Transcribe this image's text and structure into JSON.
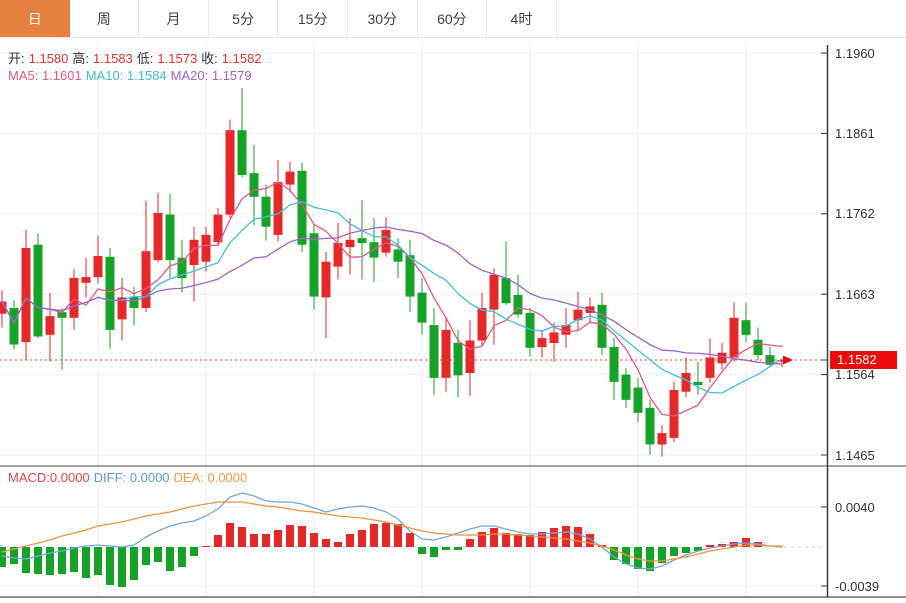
{
  "tabs": [
    {
      "label": "日",
      "selected": true
    },
    {
      "label": "周",
      "selected": false
    },
    {
      "label": "月",
      "selected": false
    },
    {
      "label": "5分",
      "selected": false
    },
    {
      "label": "15分",
      "selected": false
    },
    {
      "label": "30分",
      "selected": false
    },
    {
      "label": "60分",
      "selected": false
    },
    {
      "label": "4时",
      "selected": false
    }
  ],
  "legend": {
    "ohlc": {
      "open_label": "开:",
      "open": "1.1580",
      "high_label": "高:",
      "high": "1.1583",
      "low_label": "低:",
      "low": "1.1573",
      "close_label": "收:",
      "close": "1.1582"
    },
    "ma": {
      "ma5": "MA5: 1.1601",
      "ma10": "MA10: 1.1584",
      "ma20": "MA20: 1.1579"
    },
    "macd": {
      "macd": "MACD:0.0000",
      "diff": "DIFF: 0.0000",
      "dea": "DEA: 0.0000"
    }
  },
  "y_axis": {
    "current_price": "1.1582"
  },
  "colors": {
    "up": "#e52828",
    "down": "#14a327",
    "ma5": "#e7568c",
    "ma10": "#41c0d5",
    "ma20": "#a165c4",
    "diff": "#6fa8dc",
    "dea": "#f0923f",
    "tab_accent": "#e8813e",
    "price_tag": "#ee0a0a",
    "price_line": "#e8402a",
    "grid": "#f0f0f0",
    "axis": "#3a3a3a",
    "macd_zero": "#b9e0ea"
  },
  "chart_data": {
    "type": "candlestick+macd",
    "title": "",
    "legend_position": "top-left",
    "grid": true,
    "price_axis": {
      "min": 1.1465,
      "max": 1.196,
      "ticks": [
        1.196,
        1.1861,
        1.1762,
        1.1663,
        1.1564,
        1.1465
      ]
    },
    "current_price": 1.1582,
    "up_color_convention": "red-up-green-down",
    "candles": [
      [
        1.1639,
        1.1668,
        1.1622,
        1.1654
      ],
      [
        1.1646,
        1.1656,
        1.1595,
        1.1601
      ],
      [
        1.1604,
        1.1742,
        1.1582,
        1.172
      ],
      [
        1.1724,
        1.1738,
        1.1609,
        1.1611
      ],
      [
        1.1613,
        1.1665,
        1.158,
        1.1636
      ],
      [
        1.1641,
        1.1646,
        1.157,
        1.1634
      ],
      [
        1.1634,
        1.1694,
        1.1619,
        1.1683
      ],
      [
        1.1677,
        1.1708,
        1.1659,
        1.1684
      ],
      [
        1.1684,
        1.1735,
        1.1676,
        1.171
      ],
      [
        1.1709,
        1.172,
        1.1596,
        1.1619
      ],
      [
        1.1632,
        1.1683,
        1.1606,
        1.1659
      ],
      [
        1.166,
        1.1672,
        1.1625,
        1.1646
      ],
      [
        1.1646,
        1.1778,
        1.1641,
        1.1716
      ],
      [
        1.1705,
        1.1788,
        1.1702,
        1.1763
      ],
      [
        1.1761,
        1.1787,
        1.1683,
        1.1705
      ],
      [
        1.1708,
        1.173,
        1.1665,
        1.1683
      ],
      [
        1.1699,
        1.1746,
        1.1654,
        1.173
      ],
      [
        1.1703,
        1.1746,
        1.1691,
        1.1736
      ],
      [
        1.1727,
        1.1769,
        1.1724,
        1.1761
      ],
      [
        1.1761,
        1.1878,
        1.1757,
        1.1865
      ],
      [
        1.1865,
        1.1917,
        1.1807,
        1.181
      ],
      [
        1.1812,
        1.1847,
        1.1748,
        1.1783
      ],
      [
        1.1783,
        1.1798,
        1.1729,
        1.1746
      ],
      [
        1.1736,
        1.1828,
        1.1728,
        1.1801
      ],
      [
        1.1798,
        1.1826,
        1.1789,
        1.1814
      ],
      [
        1.1815,
        1.1825,
        1.1715,
        1.1724
      ],
      [
        1.1738,
        1.1748,
        1.1644,
        1.166
      ],
      [
        1.1659,
        1.1715,
        1.1609,
        1.1703
      ],
      [
        1.1697,
        1.1751,
        1.1681,
        1.1726
      ],
      [
        1.1721,
        1.1757,
        1.1687,
        1.173
      ],
      [
        1.1732,
        1.1779,
        1.1681,
        1.1726
      ],
      [
        1.1727,
        1.1757,
        1.1678,
        1.1708
      ],
      [
        1.1714,
        1.1758,
        1.1709,
        1.1742
      ],
      [
        1.1718,
        1.1732,
        1.1683,
        1.1703
      ],
      [
        1.1711,
        1.173,
        1.1641,
        1.166
      ],
      [
        1.1665,
        1.1683,
        1.1613,
        1.1628
      ],
      [
        1.1625,
        1.1646,
        1.1539,
        1.156
      ],
      [
        1.156,
        1.1634,
        1.1543,
        1.1619
      ],
      [
        1.1603,
        1.1619,
        1.1536,
        1.1563
      ],
      [
        1.1566,
        1.1631,
        1.1538,
        1.1606
      ],
      [
        1.1606,
        1.1665,
        1.16,
        1.1646
      ],
      [
        1.1644,
        1.1695,
        1.1601,
        1.1687
      ],
      [
        1.1683,
        1.1728,
        1.165,
        1.1652
      ],
      [
        1.1662,
        1.1687,
        1.1634,
        1.1638
      ],
      [
        1.164,
        1.1646,
        1.1586,
        1.1597
      ],
      [
        1.1598,
        1.1619,
        1.1585,
        1.1609
      ],
      [
        1.1603,
        1.1628,
        1.158,
        1.1616
      ],
      [
        1.1613,
        1.1646,
        1.1597,
        1.1625
      ],
      [
        1.1631,
        1.1666,
        1.1619,
        1.1644
      ],
      [
        1.164,
        1.1659,
        1.1628,
        1.1648
      ],
      [
        1.165,
        1.1665,
        1.1588,
        1.1597
      ],
      [
        1.1598,
        1.1609,
        1.1533,
        1.1555
      ],
      [
        1.1564,
        1.1572,
        1.1523,
        1.1533
      ],
      [
        1.1548,
        1.156,
        1.1505,
        1.1517
      ],
      [
        1.1523,
        1.1533,
        1.1465,
        1.1478
      ],
      [
        1.1478,
        1.1502,
        1.1463,
        1.1492
      ],
      [
        1.1486,
        1.1555,
        1.1481,
        1.1545
      ],
      [
        1.1543,
        1.1585,
        1.1536,
        1.1566
      ],
      [
        1.1555,
        1.158,
        1.1539,
        1.1551
      ],
      [
        1.156,
        1.1609,
        1.1554,
        1.1585
      ],
      [
        1.1578,
        1.1603,
        1.157,
        1.1591
      ],
      [
        1.1585,
        1.1653,
        1.158,
        1.1634
      ],
      [
        1.1631,
        1.1652,
        1.1604,
        1.1613
      ],
      [
        1.1607,
        1.1622,
        1.1582,
        1.1588
      ],
      [
        1.1588,
        1.1598,
        1.1573,
        1.1576
      ],
      [
        1.158,
        1.1583,
        1.1573,
        1.1582
      ]
    ],
    "ma_periods": [
      5,
      10,
      20
    ],
    "macd": {
      "axis_ticks": [
        0.004,
        -0.0039
      ],
      "histogram": [
        -0.002,
        -0.0017,
        -0.0026,
        -0.0027,
        -0.0028,
        -0.0027,
        -0.0025,
        -0.0031,
        -0.0028,
        -0.0038,
        -0.004,
        -0.0033,
        -0.0018,
        -0.0015,
        -0.0024,
        -0.002,
        -0.0009,
        0.0001,
        0.0012,
        0.0024,
        0.002,
        0.0013,
        0.0013,
        0.0017,
        0.0022,
        0.0021,
        0.0014,
        0.0008,
        0.0005,
        0.0013,
        0.0017,
        0.0023,
        0.0024,
        0.0023,
        0.0014,
        -0.0007,
        -0.001,
        -0.0003,
        -0.0003,
        0.0008,
        0.0015,
        0.0019,
        0.0014,
        0.0013,
        0.0012,
        0.0015,
        0.0019,
        0.0021,
        0.002,
        0.0013,
        0.0002,
        -0.0013,
        -0.0017,
        -0.0022,
        -0.0024,
        -0.0016,
        -0.0009,
        -0.0006,
        -0.0004,
        0.0002,
        0.0003,
        0.0005,
        0.0009,
        0.0005,
        0.0,
        0.0
      ],
      "diff": [
        -0.0009,
        -0.0011,
        -0.0012,
        -0.0009,
        -0.0006,
        -0.0004,
        -0.0001,
        0.0001,
        0.0002,
        0.0001,
        0.0,
        0.0002,
        0.001,
        0.0016,
        0.0021,
        0.0024,
        0.0026,
        0.0031,
        0.0038,
        0.005,
        0.0054,
        0.0051,
        0.0046,
        0.0045,
        0.0045,
        0.0043,
        0.0039,
        0.0035,
        0.0038,
        0.004,
        0.0041,
        0.0039,
        0.0035,
        0.0028,
        0.0016,
        0.0008,
        0.0007,
        0.001,
        0.0014,
        0.0018,
        0.0021,
        0.0021,
        0.0018,
        0.0015,
        0.0013,
        0.0013,
        0.0014,
        0.0015,
        0.0013,
        0.0008,
        0.0,
        -0.001,
        -0.0017,
        -0.0021,
        -0.0022,
        -0.0019,
        -0.0013,
        -0.0008,
        -0.0004,
        -0.0001,
        0.0001,
        0.0003,
        0.0004,
        0.0003,
        0.0001,
        0.0
      ],
      "dea": [
        -0.0005,
        -0.0002,
        0.0001,
        0.0004,
        0.0007,
        0.0011,
        0.0014,
        0.0017,
        0.0021,
        0.0023,
        0.0025,
        0.0028,
        0.0031,
        0.0033,
        0.0035,
        0.0038,
        0.0041,
        0.0043,
        0.0045,
        0.0045,
        0.0045,
        0.0043,
        0.0041,
        0.004,
        0.0038,
        0.0036,
        0.0035,
        0.0033,
        0.0031,
        0.003,
        0.0029,
        0.0027,
        0.0025,
        0.0022,
        0.0019,
        0.0016,
        0.0014,
        0.0013,
        0.0012,
        0.0012,
        0.0012,
        0.0013,
        0.0013,
        0.0012,
        0.0011,
        0.001,
        0.0009,
        0.0008,
        0.0006,
        0.0004,
        0.0001,
        -0.0003,
        -0.0008,
        -0.0012,
        -0.0014,
        -0.0014,
        -0.0012,
        -0.001,
        -0.0007,
        -0.0004,
        -0.0002,
        0.0,
        0.0002,
        0.0002,
        0.0001,
        0.0001
      ]
    }
  }
}
